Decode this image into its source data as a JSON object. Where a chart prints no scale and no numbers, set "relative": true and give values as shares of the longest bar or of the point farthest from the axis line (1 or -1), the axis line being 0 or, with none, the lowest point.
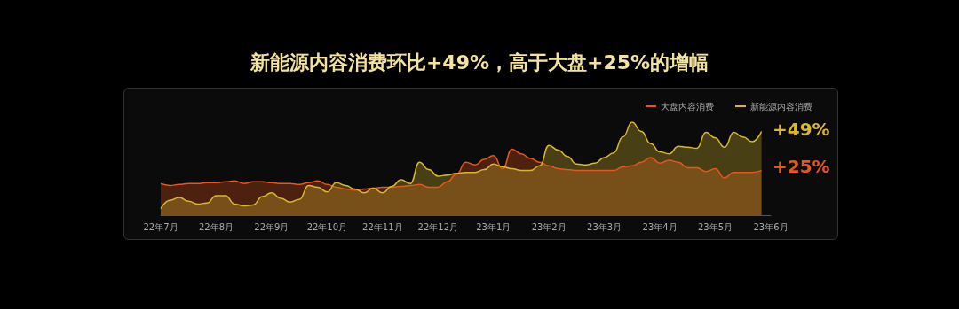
{
  "chart_data": {
    "type": "area",
    "title": "新能源内容消费环比+49%，高于大盘+25%的增幅",
    "relative": true,
    "legend": "top right",
    "grid": false,
    "marker": "none",
    "line_style": "solid",
    "categories": [
      "22年7月",
      null,
      null,
      null,
      null,
      null,
      "22年8月",
      null,
      null,
      null,
      null,
      null,
      "22年9月",
      null,
      null,
      null,
      null,
      null,
      "22年10月",
      null,
      null,
      null,
      null,
      null,
      "22年11月",
      null,
      null,
      null,
      null,
      null,
      "22年12月",
      null,
      null,
      null,
      null,
      null,
      "23年1月",
      null,
      null,
      null,
      null,
      null,
      "23年2月",
      null,
      null,
      null,
      null,
      null,
      "23年3月",
      null,
      null,
      null,
      null,
      null,
      "23年4月",
      null,
      null,
      null,
      null,
      null,
      "23年5月",
      null,
      null,
      null,
      null,
      null,
      "23年6月"
    ],
    "series": [
      {
        "name": "大盘内容消费",
        "color": "#e8561e",
        "values": [
          0.34,
          0.32,
          0.33,
          0.34,
          0.34,
          0.35,
          0.35,
          0.36,
          0.37,
          0.34,
          0.36,
          0.36,
          0.35,
          0.34,
          0.34,
          0.33,
          0.35,
          0.37,
          0.33,
          0.3,
          0.28,
          0.27,
          0.28,
          0.29,
          0.3,
          0.3,
          0.31,
          0.32,
          0.33,
          0.3,
          0.3,
          0.36,
          0.44,
          0.57,
          0.54,
          0.6,
          0.64,
          0.5,
          0.71,
          0.66,
          0.61,
          0.57,
          0.53,
          0.5,
          0.49,
          0.48,
          0.48,
          0.48,
          0.48,
          0.48,
          0.52,
          0.53,
          0.57,
          0.62,
          0.56,
          0.59,
          0.57,
          0.51,
          0.51,
          0.47,
          0.5,
          0.4,
          0.46,
          0.46,
          0.46,
          0.48,
          null
        ]
      },
      {
        "name": "新能源内容消费",
        "color": "#d9b830",
        "values": [
          0.07,
          0.16,
          0.19,
          0.15,
          0.12,
          0.13,
          0.21,
          0.21,
          0.12,
          0.1,
          0.11,
          0.2,
          0.24,
          0.18,
          0.14,
          0.17,
          0.32,
          0.3,
          0.25,
          0.35,
          0.32,
          0.28,
          0.24,
          0.29,
          0.24,
          0.31,
          0.38,
          0.34,
          0.57,
          0.49,
          0.42,
          0.43,
          0.45,
          0.46,
          0.46,
          0.49,
          0.55,
          0.52,
          0.5,
          0.48,
          0.48,
          0.53,
          0.75,
          0.7,
          0.63,
          0.55,
          0.54,
          0.56,
          0.62,
          0.67,
          0.84,
          1,
          0.9,
          0.77,
          0.68,
          0.66,
          0.74,
          0.73,
          0.72,
          0.89,
          0.83,
          0.73,
          0.89,
          0.84,
          0.79,
          0.9,
          null
        ]
      }
    ],
    "annotations": [
      "+49%",
      "+25%"
    ]
  }
}
